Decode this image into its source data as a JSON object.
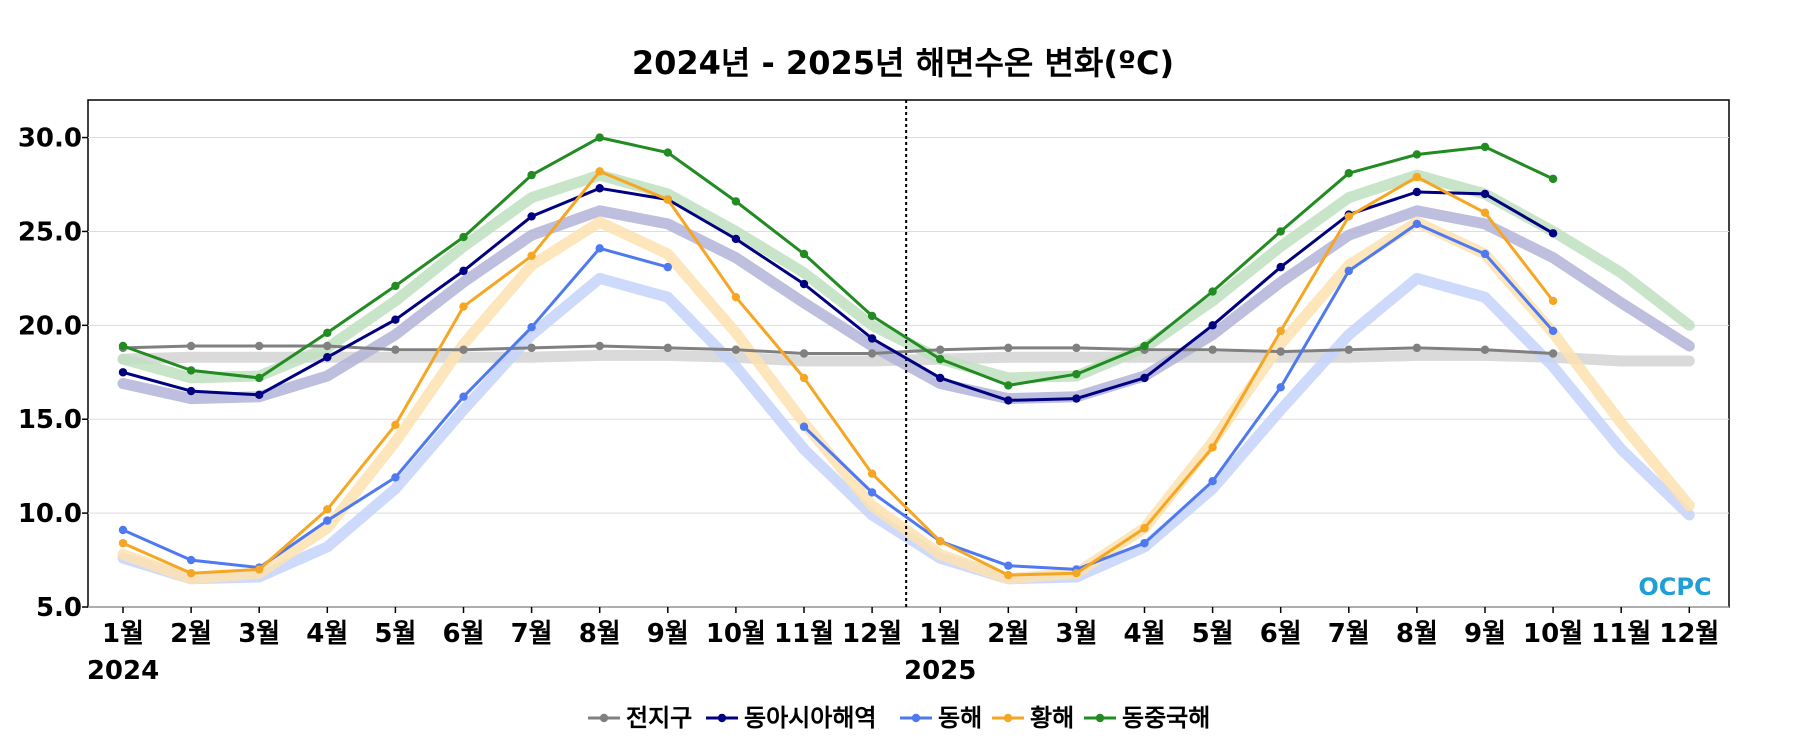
{
  "chart_data": {
    "type": "line",
    "title": "2024년 - 2025년 해면수온 변화(ºC)",
    "xlabel": "",
    "ylabel": "",
    "ylim": [
      5.0,
      32.0
    ],
    "yticks": [
      "5.0",
      "10.0",
      "15.0",
      "20.0",
      "25.0",
      "30.0"
    ],
    "grid": "horizontal",
    "categories": [
      "1월",
      "2월",
      "3월",
      "4월",
      "5월",
      "6월",
      "7월",
      "8월",
      "9월",
      "10월",
      "11월",
      "12월",
      "1월",
      "2월",
      "3월",
      "4월",
      "5월",
      "6월",
      "7월",
      "8월",
      "9월",
      "10월",
      "11월",
      "12월"
    ],
    "year_labels": [
      {
        "label": "2024",
        "index": 0
      },
      {
        "label": "2025",
        "index": 12
      }
    ],
    "divider_between": [
      11,
      12
    ],
    "legend_position": "bottom-center",
    "series": [
      {
        "name": "전지구",
        "color": "#808080",
        "clim_color": "#d3d3d3",
        "values": [
          18.8,
          18.9,
          18.9,
          18.9,
          18.7,
          18.7,
          18.8,
          18.9,
          18.8,
          18.7,
          18.5,
          18.5,
          18.7,
          18.8,
          18.8,
          18.7,
          18.7,
          18.6,
          18.7,
          18.8,
          18.7,
          18.5,
          null,
          null
        ],
        "climatology": [
          18.2,
          18.3,
          18.3,
          18.3,
          18.3,
          18.3,
          18.3,
          18.4,
          18.4,
          18.3,
          18.1,
          18.1,
          18.2,
          18.3,
          18.3,
          18.3,
          18.3,
          18.3,
          18.3,
          18.4,
          18.4,
          18.3,
          18.1,
          18.1
        ]
      },
      {
        "name": "동아시아해역",
        "color": "#000080",
        "clim_color": "#b3b3d9",
        "values": [
          17.5,
          16.5,
          16.3,
          18.3,
          20.3,
          22.9,
          25.8,
          27.3,
          26.7,
          24.6,
          22.2,
          19.3,
          17.2,
          16.0,
          16.1,
          17.2,
          20.0,
          23.1,
          25.9,
          27.1,
          27.0,
          24.9,
          null,
          null
        ],
        "climatology": [
          16.9,
          16.1,
          16.2,
          17.3,
          19.5,
          22.3,
          24.8,
          26.1,
          25.4,
          23.6,
          21.2,
          18.9,
          16.9,
          16.1,
          16.2,
          17.3,
          19.5,
          22.3,
          24.8,
          26.1,
          25.4,
          23.6,
          21.2,
          18.9
        ]
      },
      {
        "name": "동해",
        "color": "#4e79f0",
        "clim_color": "#c6d4fc",
        "values": [
          9.1,
          7.5,
          7.1,
          9.6,
          11.9,
          16.2,
          19.9,
          24.1,
          23.1,
          null,
          14.6,
          11.1,
          8.5,
          7.2,
          7.0,
          8.4,
          11.7,
          16.7,
          22.9,
          25.4,
          23.8,
          19.7,
          null,
          null
        ],
        "climatology": [
          7.6,
          6.5,
          6.6,
          8.2,
          11.3,
          15.5,
          19.5,
          22.5,
          21.5,
          17.8,
          13.4,
          9.9,
          7.6,
          6.5,
          6.6,
          8.2,
          11.3,
          15.5,
          19.5,
          22.5,
          21.5,
          17.8,
          13.4,
          9.9
        ]
      },
      {
        "name": "황해",
        "color": "#f5a623",
        "clim_color": "#fde2b0",
        "values": [
          8.4,
          6.8,
          7.0,
          10.2,
          14.7,
          21.0,
          23.7,
          28.2,
          26.7,
          21.5,
          17.2,
          12.1,
          8.5,
          6.7,
          6.8,
          9.2,
          13.5,
          19.7,
          25.8,
          27.9,
          26.0,
          21.3,
          null,
          null
        ],
        "climatology": [
          7.8,
          6.5,
          6.8,
          9.2,
          13.8,
          19.0,
          23.2,
          25.5,
          23.8,
          19.6,
          14.8,
          10.4,
          7.8,
          6.5,
          6.8,
          9.2,
          13.8,
          19.0,
          23.2,
          25.5,
          23.8,
          19.6,
          14.8,
          10.4
        ]
      },
      {
        "name": "동중국해",
        "color": "#228b22",
        "clim_color": "#bfe0bf",
        "values": [
          18.9,
          17.6,
          17.2,
          19.6,
          22.1,
          24.7,
          28.0,
          30.0,
          29.2,
          26.6,
          23.8,
          20.5,
          18.2,
          16.8,
          17.4,
          18.9,
          21.8,
          25.0,
          28.1,
          29.1,
          29.5,
          27.8,
          null,
          null
        ],
        "climatology": [
          18.2,
          17.2,
          17.3,
          18.8,
          21.3,
          24.2,
          26.8,
          28.0,
          27.0,
          25.0,
          22.8,
          20.0,
          18.2,
          17.2,
          17.3,
          18.8,
          21.3,
          24.2,
          26.8,
          28.0,
          27.0,
          25.0,
          22.8,
          20.0
        ]
      }
    ],
    "logo_text": "OCPC"
  }
}
